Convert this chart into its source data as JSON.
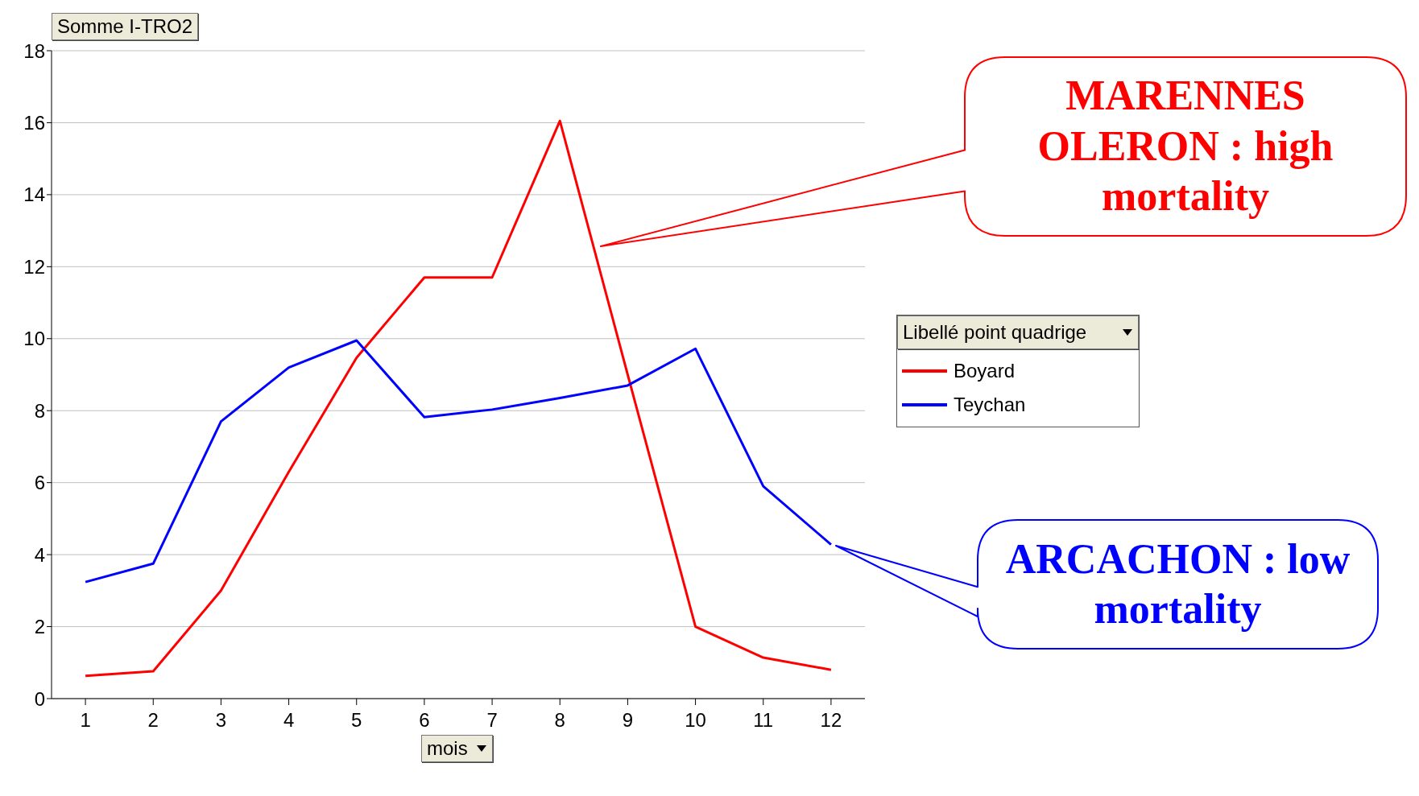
{
  "chart_data": {
    "type": "line",
    "ylabel": "Somme I-TRO2",
    "xlabel": "mois",
    "legend_title": "Libellé point quadrige",
    "x": [
      1,
      2,
      3,
      4,
      5,
      6,
      7,
      8,
      9,
      10,
      11,
      12
    ],
    "xlim": [
      0.5,
      12.5
    ],
    "xticks": [
      1,
      2,
      3,
      4,
      5,
      6,
      7,
      8,
      9,
      10,
      11,
      12
    ],
    "ylim": [
      0,
      18
    ],
    "yticks": [
      0,
      2,
      4,
      6,
      8,
      10,
      12,
      14,
      16,
      18
    ],
    "grid": "y",
    "legend": "right",
    "marker": "none",
    "line_style": "solid",
    "series": [
      {
        "name": "Boyard",
        "color": "#ff0000",
        "values": [
          0.63,
          0.76,
          3.0,
          6.3,
          9.47,
          11.7,
          11.7,
          16.05,
          9.0,
          2.0,
          1.14,
          0.8
        ]
      },
      {
        "name": "Teychan",
        "color": "#0000ff",
        "values": [
          3.24,
          3.75,
          7.7,
          9.2,
          9.95,
          7.82,
          8.03,
          8.35,
          8.7,
          9.72,
          5.9,
          4.28
        ]
      }
    ],
    "annotations": [
      "MARENNES OLERON : high mortality",
      "ARCACHON : low mortality"
    ]
  }
}
